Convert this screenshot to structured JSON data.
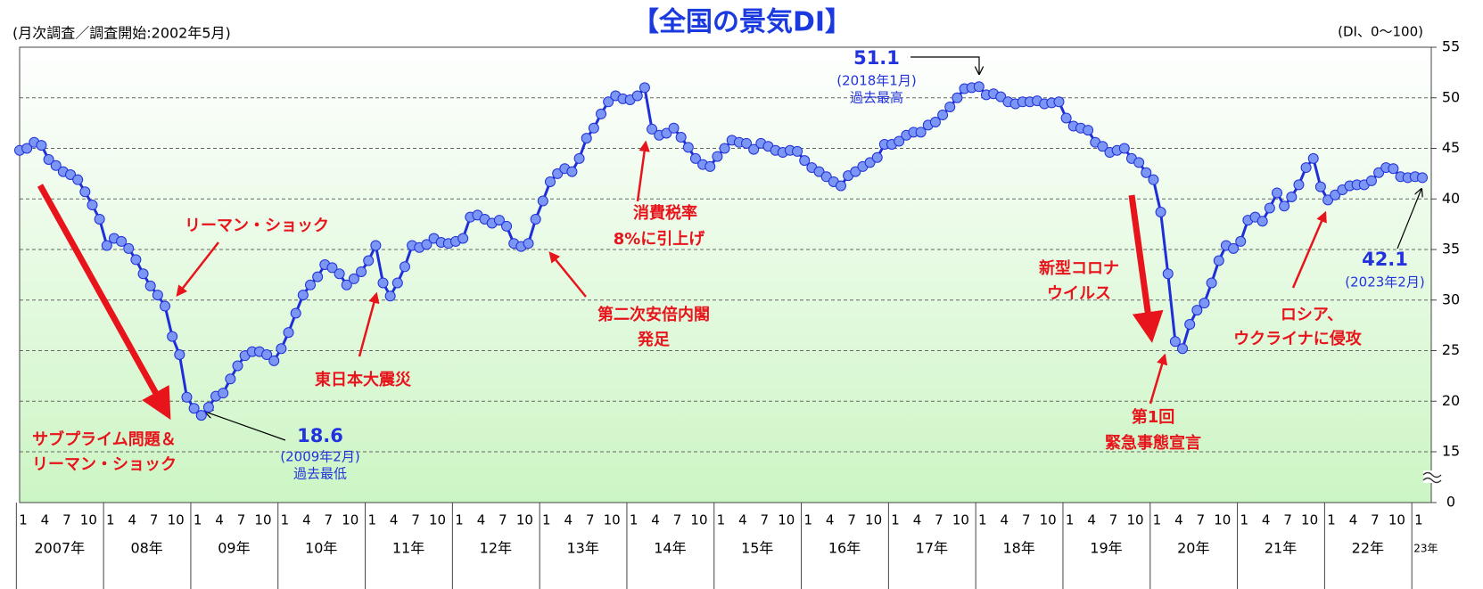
{
  "chart_data": {
    "type": "line",
    "title": "【全国の景気DI】",
    "subtitle": "(月次調査／調査開始:2002年5月)",
    "y_axis_label": "(DI、0〜100)",
    "categories": [
      "1",
      null,
      null,
      "4",
      null,
      null,
      "7",
      null,
      null,
      "10",
      null,
      null,
      "1",
      null,
      null,
      "4",
      null,
      null,
      "7",
      null,
      null,
      "10",
      null,
      null,
      "1",
      null,
      null,
      "4",
      null,
      null,
      "7",
      null,
      null,
      "10",
      null,
      null,
      "1",
      null,
      null,
      "4",
      null,
      null,
      "7",
      null,
      null,
      "10",
      null,
      null,
      "1",
      null,
      null,
      "4",
      null,
      null,
      "7",
      null,
      null,
      "10",
      null,
      null,
      "1",
      null,
      null,
      "4",
      null,
      null,
      "7",
      null,
      null,
      "10",
      null,
      null,
      "1",
      null,
      null,
      "4",
      null,
      null,
      "7",
      null,
      null,
      "10",
      null,
      null,
      "1",
      null,
      null,
      "4",
      null,
      null,
      "7",
      null,
      null,
      "10",
      null,
      null,
      "1",
      null,
      null,
      "4",
      null,
      null,
      "7",
      null,
      null,
      "10",
      null,
      null,
      "1",
      null,
      null,
      "4",
      null,
      null,
      "7",
      null,
      null,
      "10",
      null,
      null,
      "1",
      null,
      null,
      "4",
      null,
      null,
      "7",
      null,
      null,
      "10",
      null,
      null,
      "1",
      null,
      null,
      "4",
      null,
      null,
      "7",
      null,
      null,
      "10",
      null,
      null,
      "1",
      null,
      null,
      "4",
      null,
      null,
      "7",
      null,
      null,
      "10",
      null,
      null,
      "1",
      null,
      null,
      "4",
      null,
      null,
      "7",
      null,
      null,
      "10",
      null,
      null,
      "1",
      null,
      null,
      "4",
      null,
      null,
      "7",
      null,
      null,
      "10",
      null,
      null,
      "1",
      null,
      null,
      "4",
      null,
      null,
      "7",
      null,
      null,
      "10",
      null,
      null,
      "1",
      null
    ],
    "years": [
      "2007年",
      "08年",
      "09年",
      "10年",
      "11年",
      "12年",
      "13年",
      "14年",
      "15年",
      "16年",
      "17年",
      "18年",
      "19年",
      "20年",
      "21年",
      "22年",
      "23年"
    ],
    "series": [
      {
        "name": "DI",
        "color": "#1f2fd8",
        "marker_color": "#7b96f5",
        "values": [
          44.8,
          45.0,
          45.6,
          45.3,
          43.9,
          43.3,
          42.7,
          42.4,
          41.9,
          40.7,
          39.4,
          38.0,
          35.4,
          36.1,
          35.8,
          35.1,
          34.0,
          32.6,
          31.4,
          30.5,
          29.4,
          26.4,
          24.6,
          20.4,
          19.3,
          18.6,
          19.4,
          20.5,
          20.8,
          22.2,
          23.5,
          24.5,
          24.9,
          24.9,
          24.6,
          24.0,
          25.2,
          26.8,
          28.7,
          30.5,
          31.5,
          32.3,
          33.5,
          33.2,
          32.6,
          31.5,
          32.1,
          32.8,
          33.9,
          35.4,
          31.7,
          30.4,
          31.7,
          33.3,
          35.4,
          35.2,
          35.5,
          36.1,
          35.7,
          35.6,
          35.8,
          36.1,
          38.2,
          38.4,
          38.0,
          37.6,
          37.9,
          37.3,
          35.6,
          35.3,
          35.6,
          38.0,
          39.8,
          41.7,
          42.5,
          43.0,
          42.7,
          44.0,
          46.0,
          47.0,
          48.4,
          49.6,
          50.2,
          49.9,
          49.8,
          50.2,
          51.0,
          46.9,
          46.3,
          46.5,
          47.0,
          46.1,
          45.1,
          44.0,
          43.4,
          43.2,
          44.2,
          45.0,
          45.8,
          45.6,
          45.5,
          44.9,
          45.5,
          45.2,
          44.8,
          44.6,
          44.8,
          44.7,
          43.8,
          43.1,
          42.7,
          42.2,
          41.7,
          41.3,
          42.3,
          42.7,
          43.2,
          43.6,
          44.1,
          45.4,
          45.4,
          45.7,
          46.3,
          46.6,
          46.6,
          47.3,
          47.6,
          48.3,
          49.1,
          50.0,
          50.9,
          51.0,
          51.1,
          50.3,
          50.4,
          50.1,
          49.6,
          49.4,
          49.6,
          49.6,
          49.7,
          49.4,
          49.5,
          49.6,
          48.0,
          47.2,
          47.0,
          46.8,
          45.6,
          45.2,
          44.6,
          44.8,
          45.0,
          44.0,
          43.6,
          42.6,
          41.9,
          38.7,
          32.6,
          25.9,
          25.2,
          27.6,
          29.0,
          29.7,
          31.7,
          33.9,
          35.4,
          35.1,
          35.8,
          37.9,
          38.2,
          37.8,
          39.1,
          40.6,
          39.3,
          40.2,
          41.4,
          43.1,
          44.0,
          41.2,
          39.9,
          40.4,
          40.9,
          41.3,
          41.4,
          41.4,
          41.8,
          42.6,
          43.1,
          43.0,
          42.2,
          42.1,
          42.2,
          42.1
        ]
      }
    ],
    "ylim": [
      0,
      55
    ],
    "y_break": [
      0,
      15
    ],
    "yticks": [
      0,
      15,
      20,
      25,
      30,
      35,
      40,
      45,
      50,
      55
    ],
    "grid": true,
    "annotations": [
      {
        "text": "リーマン・ショック",
        "color": "red"
      },
      {
        "text": "サブプライム問題＆",
        "color": "red"
      },
      {
        "text": "リーマン・ショック",
        "color": "red"
      },
      {
        "text": "東日本大震災",
        "color": "red"
      },
      {
        "text": "消費税率",
        "color": "red"
      },
      {
        "text": "8%に引上げ",
        "color": "red"
      },
      {
        "text": "第二次安倍内閣",
        "color": "red"
      },
      {
        "text": "発足",
        "color": "red"
      },
      {
        "text": "新型コロナ",
        "color": "red"
      },
      {
        "text": "ウイルス",
        "color": "red"
      },
      {
        "text": "第1回",
        "color": "red"
      },
      {
        "text": "緊急事態宣言",
        "color": "red"
      },
      {
        "text": "ロシア、",
        "color": "red"
      },
      {
        "text": "ウクライナに侵攻",
        "color": "red"
      },
      {
        "text": "51.1",
        "color": "blue"
      },
      {
        "text": "(2018年1月)",
        "color": "blue"
      },
      {
        "text": "過去最高",
        "color": "blue"
      },
      {
        "text": "18.6",
        "color": "blue"
      },
      {
        "text": "(2009年2月)",
        "color": "blue"
      },
      {
        "text": "過去最低",
        "color": "blue"
      },
      {
        "text": "42.1",
        "color": "blue"
      },
      {
        "text": "(2023年2月)",
        "color": "blue"
      }
    ]
  }
}
